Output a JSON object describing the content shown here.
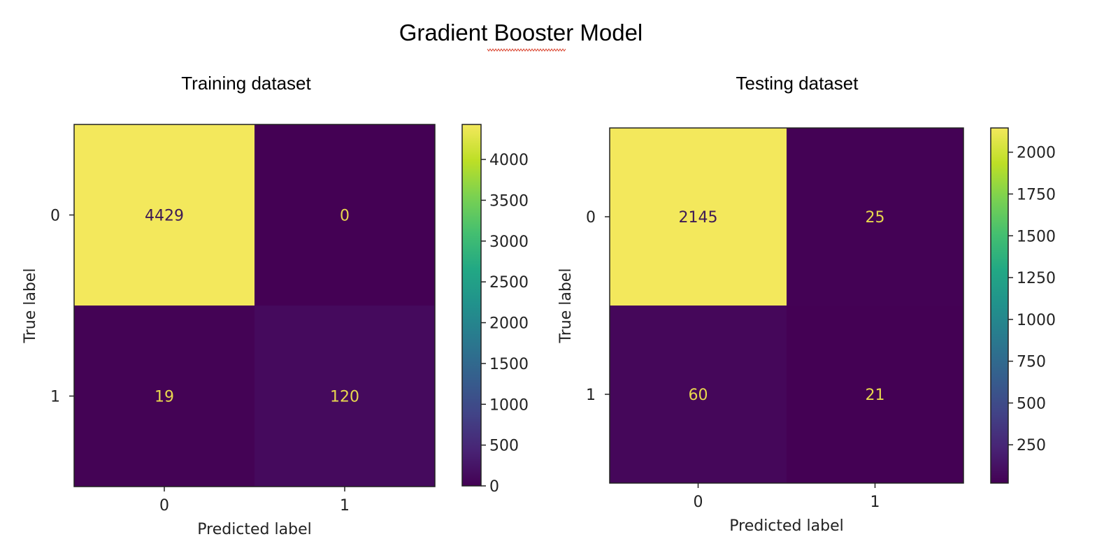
{
  "page": {
    "title": "Gradient Booster Model"
  },
  "chart_data": [
    {
      "type": "heatmap",
      "title": "Training dataset",
      "xlabel": "Predicted label",
      "ylabel": "True label",
      "x_categories": [
        "0",
        "1"
      ],
      "y_categories": [
        "0",
        "1"
      ],
      "values": [
        [
          4429,
          0
        ],
        [
          19,
          120
        ]
      ],
      "colorbar": {
        "range": [
          0,
          4429
        ],
        "ticks": [
          0,
          500,
          1000,
          1500,
          2000,
          2500,
          3000,
          3500,
          4000
        ]
      },
      "colormap": "viridis"
    },
    {
      "type": "heatmap",
      "title": "Testing dataset",
      "xlabel": "Predicted label",
      "ylabel": "True label",
      "x_categories": [
        "0",
        "1"
      ],
      "y_categories": [
        "0",
        "1"
      ],
      "values": [
        [
          2145,
          25
        ],
        [
          60,
          21
        ]
      ],
      "colorbar": {
        "range": [
          21,
          2145
        ],
        "ticks": [
          250,
          500,
          750,
          1000,
          1250,
          1500,
          1750,
          2000
        ]
      },
      "colormap": "viridis"
    }
  ]
}
